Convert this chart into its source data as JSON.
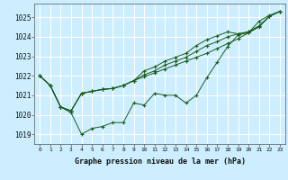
{
  "xlabel": "Graphe pression niveau de la mer (hPa)",
  "background_color": "#cceeff",
  "grid_color": "#ffffff",
  "line_color": "#1a5c1a",
  "xlim": [
    -0.5,
    23.5
  ],
  "ylim": [
    1018.5,
    1025.7
  ],
  "yticks": [
    1019,
    1020,
    1021,
    1022,
    1023,
    1024,
    1025
  ],
  "xticks": [
    0,
    1,
    2,
    3,
    4,
    5,
    6,
    7,
    8,
    9,
    10,
    11,
    12,
    13,
    14,
    15,
    16,
    17,
    18,
    19,
    20,
    21,
    22,
    23
  ],
  "series": [
    [
      1022.0,
      1021.5,
      1020.4,
      1020.1,
      1019.0,
      1019.3,
      1019.4,
      1019.6,
      1019.6,
      1020.6,
      1020.5,
      1021.1,
      1021.0,
      1021.0,
      1020.6,
      1021.0,
      1021.9,
      1022.7,
      1023.5,
      1024.1,
      1024.2,
      1024.8,
      1025.1,
      1025.3
    ],
    [
      1022.0,
      1021.5,
      1020.4,
      1020.2,
      1021.1,
      1021.2,
      1021.3,
      1021.35,
      1021.5,
      1021.75,
      1021.95,
      1022.15,
      1022.35,
      1022.55,
      1022.75,
      1022.95,
      1023.15,
      1023.4,
      1023.65,
      1023.9,
      1024.2,
      1024.5,
      1025.05,
      1025.3
    ],
    [
      1022.0,
      1021.5,
      1020.4,
      1020.2,
      1021.1,
      1021.2,
      1021.3,
      1021.35,
      1021.5,
      1021.75,
      1022.05,
      1022.25,
      1022.55,
      1022.75,
      1022.95,
      1023.25,
      1023.55,
      1023.75,
      1024.0,
      1024.15,
      1024.25,
      1024.55,
      1025.05,
      1025.3
    ],
    [
      1022.0,
      1021.5,
      1020.4,
      1020.2,
      1021.1,
      1021.2,
      1021.3,
      1021.35,
      1021.5,
      1021.75,
      1022.25,
      1022.45,
      1022.75,
      1022.95,
      1023.15,
      1023.55,
      1023.85,
      1024.05,
      1024.25,
      1024.15,
      1024.25,
      1024.55,
      1025.05,
      1025.3
    ]
  ]
}
